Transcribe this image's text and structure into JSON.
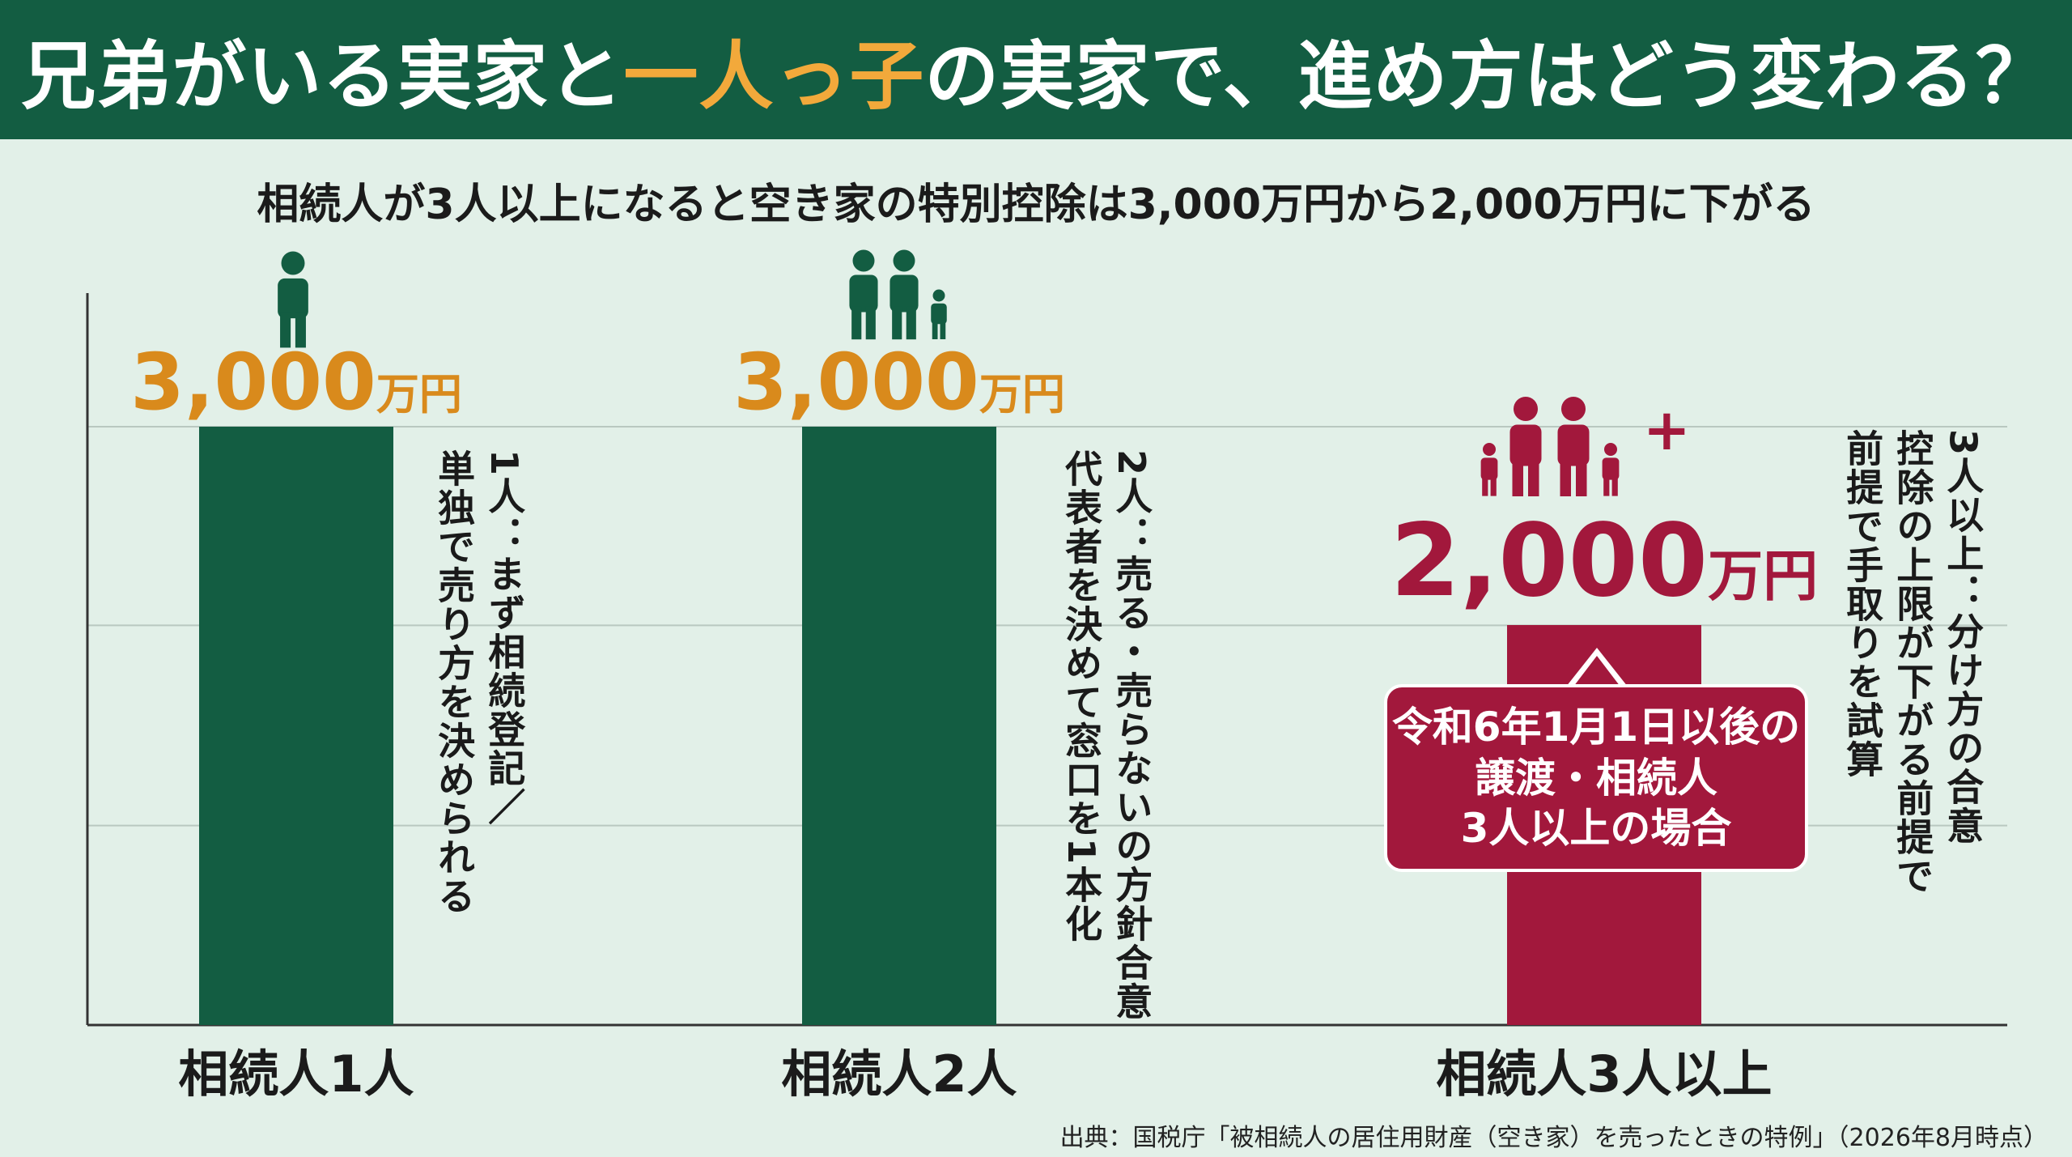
{
  "header": {
    "title_prefix": "兄弟がいる実家と",
    "title_highlight": "一人っ子",
    "title_suffix": "の実家で、進め方はどう変わる？"
  },
  "subtitle": "相続人が3人以上になると空き家の特別控除は3,000万円から2,000万円に下がる",
  "colors": {
    "green": "#135d42",
    "crimson": "#a2183c",
    "orange": "#d98a1c"
  },
  "chart_data": {
    "type": "bar",
    "categories": [
      "相続人1人",
      "相続人2人",
      "相続人3人以上"
    ],
    "values": [
      3000,
      3000,
      2000
    ],
    "value_labels": [
      {
        "num": "3,000",
        "unit": "万円"
      },
      {
        "num": "3,000",
        "unit": "万円"
      },
      {
        "num": "2,000",
        "unit": "万円"
      }
    ],
    "bar_colors": [
      "#135d42",
      "#135d42",
      "#a2183c"
    ],
    "label_colors": [
      "#d98a1c",
      "#d98a1c",
      "#a2183c"
    ],
    "icons": [
      "person-icon",
      "family-icon",
      "family-plus-icon"
    ],
    "ylim": [
      0,
      3000
    ],
    "grid": true
  },
  "notes": [
    {
      "lines": [
        "1人：まず相続登記／",
        "単独で売り方を決められる"
      ]
    },
    {
      "lines": [
        "2人：売る・売らないの方針合意",
        "代表者を決めて窓口を1本化"
      ]
    },
    {
      "lines": [
        "3人以上：分け方の合意",
        "控除の上限が下がる前提で",
        "前提で手取りを試算"
      ]
    }
  ],
  "callout": {
    "lines": [
      "令和6年1月1日以後の",
      "譲渡・相続人",
      "3人以上の場合"
    ]
  },
  "plus_sign": "+",
  "source": "出典：国税庁「被相続人の居住用財産（空き家）を売ったときの特例」（2026年8月時点）"
}
